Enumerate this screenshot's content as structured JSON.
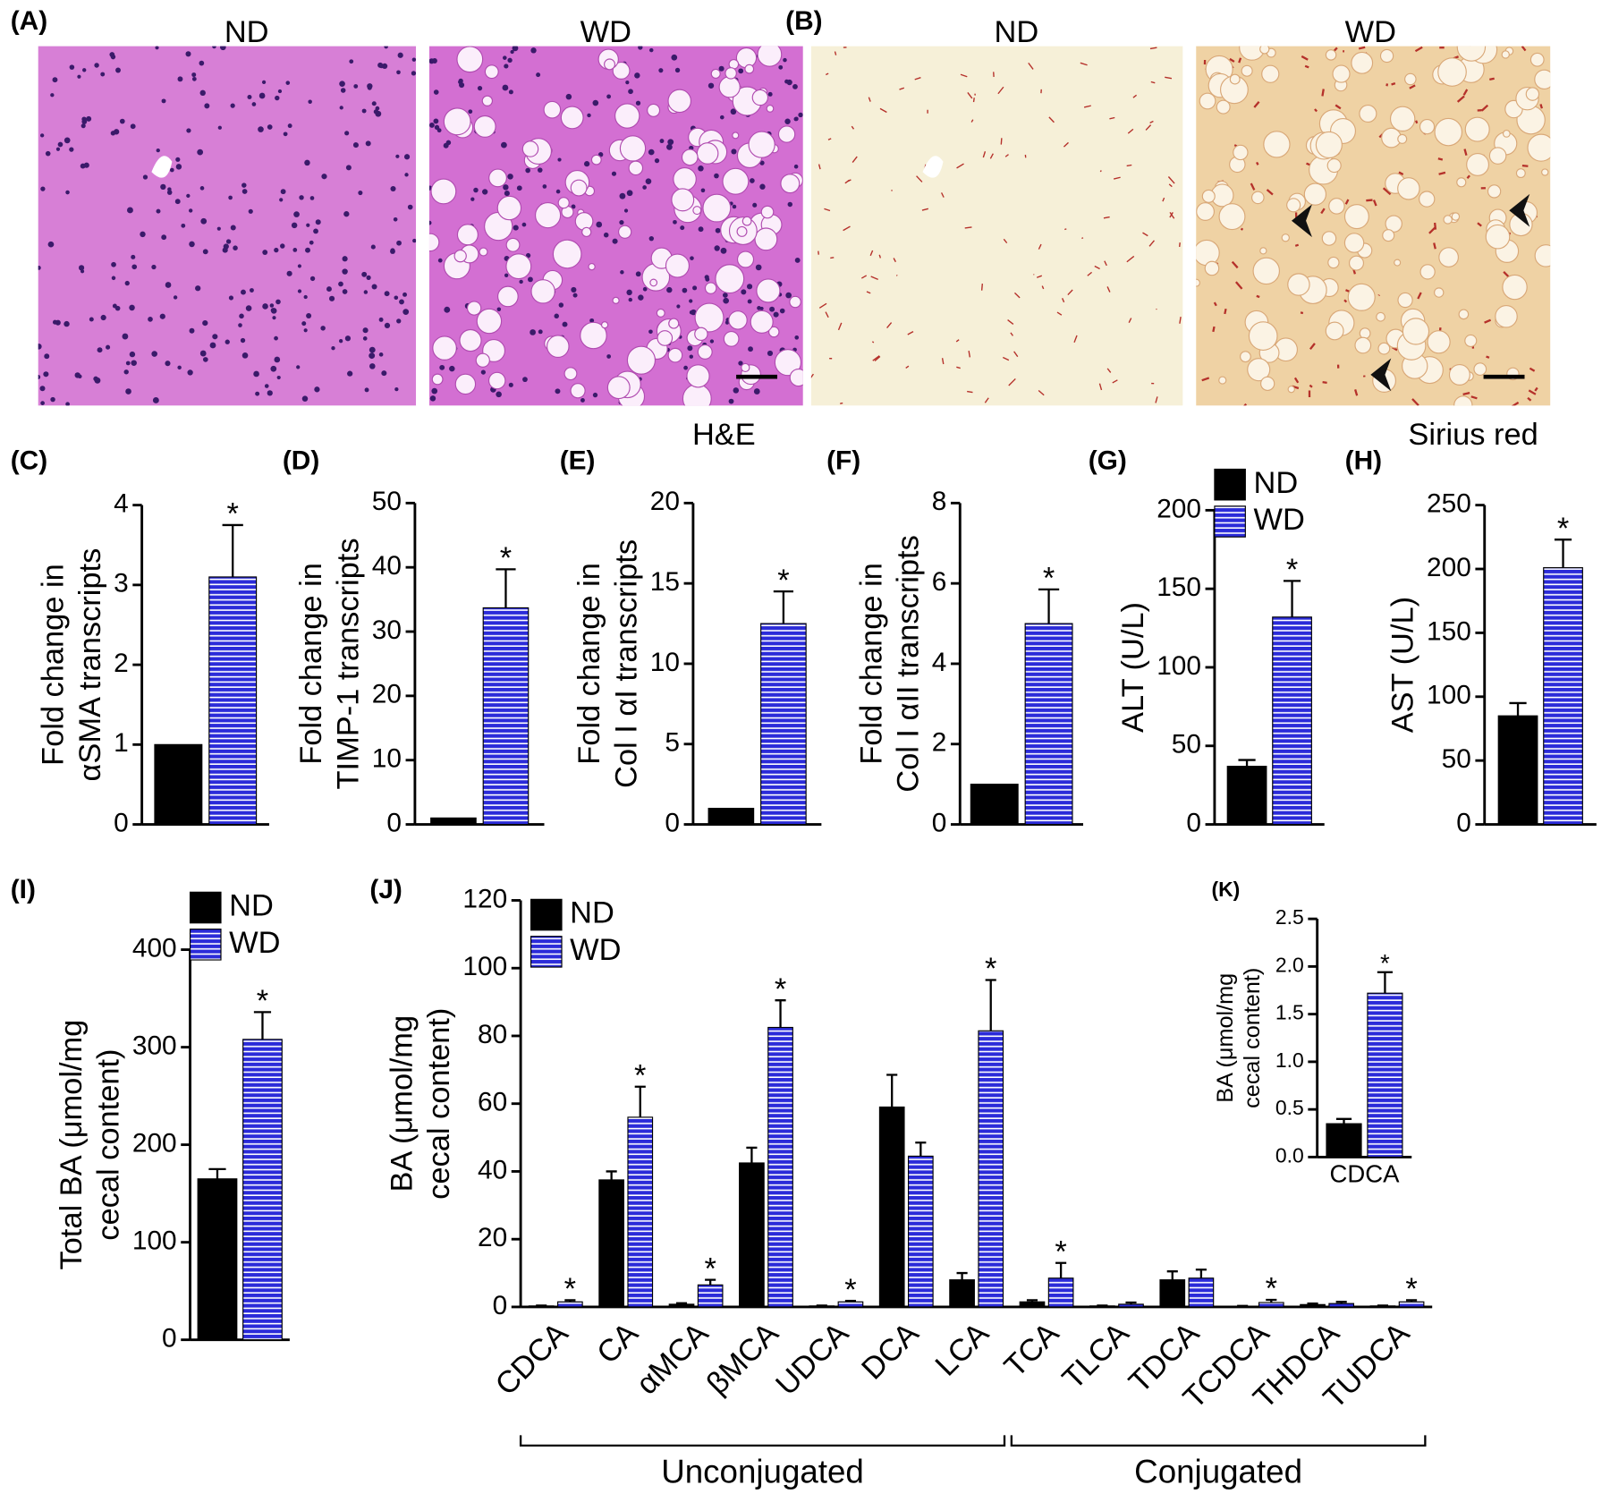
{
  "images": [
    {
      "panel": "(A)",
      "groups": [
        "ND",
        "WD"
      ],
      "stain": "H&E"
    },
    {
      "panel": "(B)",
      "groups": [
        "ND",
        "WD"
      ],
      "stain": "Sirius red"
    }
  ],
  "chart_data": [
    {
      "type": "bar",
      "panel": "(C)",
      "ylabel": [
        "Fold change in",
        "αSMA transcripts"
      ],
      "categories": [
        null
      ],
      "ylim": [
        0,
        4
      ],
      "yticks": [
        0,
        1,
        2,
        3,
        4
      ],
      "series": [
        {
          "color": "#000000",
          "values": [
            1
          ],
          "errors": [
            null
          ]
        },
        {
          "color": "#2b2bd9",
          "values": [
            3.1
          ],
          "errors": [
            0.65
          ]
        }
      ],
      "annotations": [
        {
          "text": "*",
          "series": 1,
          "index": 0
        }
      ]
    },
    {
      "type": "bar",
      "panel": "(D)",
      "ylabel": [
        "Fold change in",
        "TIMP-1 transcripts"
      ],
      "categories": [
        null
      ],
      "ylim": [
        0,
        50
      ],
      "yticks": [
        0,
        10,
        20,
        30,
        40,
        50
      ],
      "series": [
        {
          "color": "#000000",
          "values": [
            1
          ],
          "errors": [
            null
          ]
        },
        {
          "color": "#2b2bd9",
          "values": [
            33.7
          ],
          "errors": [
            6
          ]
        }
      ],
      "annotations": [
        {
          "text": "*",
          "series": 1,
          "index": 0
        }
      ]
    },
    {
      "type": "bar",
      "panel": "(E)",
      "ylabel": [
        "Fold change in",
        "Col I αI transcripts"
      ],
      "categories": [
        null
      ],
      "ylim": [
        0,
        20
      ],
      "yticks": [
        0,
        5,
        10,
        15,
        20
      ],
      "series": [
        {
          "color": "#000000",
          "values": [
            1
          ],
          "errors": [
            null
          ]
        },
        {
          "color": "#2b2bd9",
          "values": [
            12.5
          ],
          "errors": [
            2
          ]
        }
      ],
      "annotations": [
        {
          "text": "*",
          "series": 1,
          "index": 0
        }
      ]
    },
    {
      "type": "bar",
      "panel": "(F)",
      "ylabel": [
        "Fold change in",
        "Col I αII transcripts"
      ],
      "categories": [
        null
      ],
      "ylim": [
        0,
        8
      ],
      "yticks": [
        0,
        2,
        4,
        6,
        8
      ],
      "series": [
        {
          "color": "#000000",
          "values": [
            1
          ],
          "errors": [
            null
          ]
        },
        {
          "color": "#2b2bd9",
          "values": [
            5
          ],
          "errors": [
            0.85
          ]
        }
      ],
      "annotations": [
        {
          "text": "*",
          "series": 1,
          "index": 0
        }
      ]
    },
    {
      "type": "bar",
      "panel": "(G)",
      "ylabel": [
        "ALT (U/L)"
      ],
      "categories": [
        null
      ],
      "ylim": [
        0,
        200
      ],
      "yticks": [
        0,
        50,
        100,
        150,
        200
      ],
      "legend": "top-left",
      "series": [
        {
          "name": "ND",
          "color": "#000000",
          "values": [
            37
          ],
          "errors": [
            4
          ]
        },
        {
          "name": "WD",
          "color": "#2b2bd9",
          "values": [
            132
          ],
          "errors": [
            23
          ]
        }
      ],
      "annotations": [
        {
          "text": "*",
          "series": 1,
          "index": 0
        }
      ]
    },
    {
      "type": "bar",
      "panel": "(H)",
      "ylabel": [
        "AST (U/L)"
      ],
      "categories": [
        null
      ],
      "ylim": [
        0,
        250
      ],
      "yticks": [
        0,
        50,
        100,
        150,
        200,
        250
      ],
      "series": [
        {
          "color": "#000000",
          "values": [
            85
          ],
          "errors": [
            10
          ]
        },
        {
          "color": "#2b2bd9",
          "values": [
            201
          ],
          "errors": [
            22
          ]
        }
      ],
      "annotations": [
        {
          "text": "*",
          "series": 1,
          "index": 0
        }
      ]
    },
    {
      "type": "bar",
      "panel": "(I)",
      "ylabel": [
        "Total BA (μmol/mg",
        "cecal content)"
      ],
      "categories": [
        null
      ],
      "ylim": [
        0,
        400
      ],
      "yticks": [
        0,
        100,
        200,
        300,
        400
      ],
      "legend": "top-left",
      "series": [
        {
          "name": "ND",
          "color": "#000000",
          "values": [
            165
          ],
          "errors": [
            10
          ]
        },
        {
          "name": "WD",
          "color": "#2b2bd9",
          "values": [
            308
          ],
          "errors": [
            28
          ]
        }
      ],
      "annotations": [
        {
          "text": "*",
          "series": 1,
          "index": 0
        }
      ]
    },
    {
      "type": "bar",
      "panel": "(J)",
      "ylabel": [
        "BA (μmol/mg",
        "cecal content)"
      ],
      "categories": [
        "CDCA",
        "CA",
        "αMCA",
        "βMCA",
        "UDCA",
        "DCA",
        "LCA",
        "TCA",
        "TLCA",
        "TDCA",
        "TCDCA",
        "THDCA",
        "TUDCA"
      ],
      "ylim": [
        0,
        120
      ],
      "yticks": [
        0,
        20,
        40,
        60,
        80,
        100,
        120
      ],
      "legend": "top-left",
      "series": [
        {
          "name": "ND",
          "color": "#000000",
          "values": [
            0.3,
            37.5,
            0.8,
            42.5,
            0.3,
            59,
            8,
            1.5,
            0.3,
            8,
            0.2,
            0.7,
            0.3
          ],
          "errors": [
            0.1,
            2.5,
            0.3,
            4.5,
            0.1,
            9.5,
            2,
            0.5,
            0.1,
            2.5,
            0.1,
            0.3,
            0.1
          ]
        },
        {
          "name": "WD",
          "color": "#2b2bd9",
          "values": [
            1.5,
            56,
            6.5,
            82.5,
            1.5,
            44.5,
            81.5,
            8.5,
            0.8,
            8.5,
            1.3,
            1,
            1.5
          ],
          "errors": [
            0.5,
            9,
            1.5,
            8,
            0.3,
            4,
            15,
            4.5,
            0.5,
            2.5,
            0.8,
            0.5,
            0.5
          ]
        }
      ],
      "annotations": [
        {
          "text": "*",
          "series": 1,
          "index": 0
        },
        {
          "text": "*",
          "series": 1,
          "index": 1
        },
        {
          "text": "*",
          "series": 1,
          "index": 2
        },
        {
          "text": "*",
          "series": 1,
          "index": 3
        },
        {
          "text": "*",
          "series": 1,
          "index": 4
        },
        {
          "text": "*",
          "series": 1,
          "index": 6
        },
        {
          "text": "*",
          "series": 1,
          "index": 7
        },
        {
          "text": "*",
          "series": 1,
          "index": 10
        },
        {
          "text": "*",
          "series": 1,
          "index": 12
        }
      ],
      "groups": [
        {
          "label": "Unconjugated",
          "from": 0,
          "to": 6
        },
        {
          "label": "Conjugated",
          "from": 7,
          "to": 12
        }
      ]
    },
    {
      "type": "bar",
      "panel": "(K)",
      "ylabel": [
        "BA (μmol/mg",
        "cecal content)"
      ],
      "categories": [
        "CDCA"
      ],
      "ylim": [
        0,
        2.5
      ],
      "yticks": [
        {
          "value": 0,
          "label": "0.0"
        },
        {
          "value": 0.5,
          "label": "0.5"
        },
        {
          "value": 1,
          "label": "1.0"
        },
        {
          "value": 1.5,
          "label": "1.5"
        },
        {
          "value": 2,
          "label": "2.0"
        },
        {
          "value": 2.5,
          "label": "2.5"
        }
      ],
      "series": [
        {
          "color": "#000000",
          "values": [
            0.35
          ],
          "errors": [
            0.05
          ]
        },
        {
          "color": "#2b2bd9",
          "values": [
            1.72
          ],
          "errors": [
            0.22
          ]
        }
      ],
      "annotations": [
        {
          "text": "*",
          "series": 1,
          "index": 0
        }
      ]
    }
  ]
}
